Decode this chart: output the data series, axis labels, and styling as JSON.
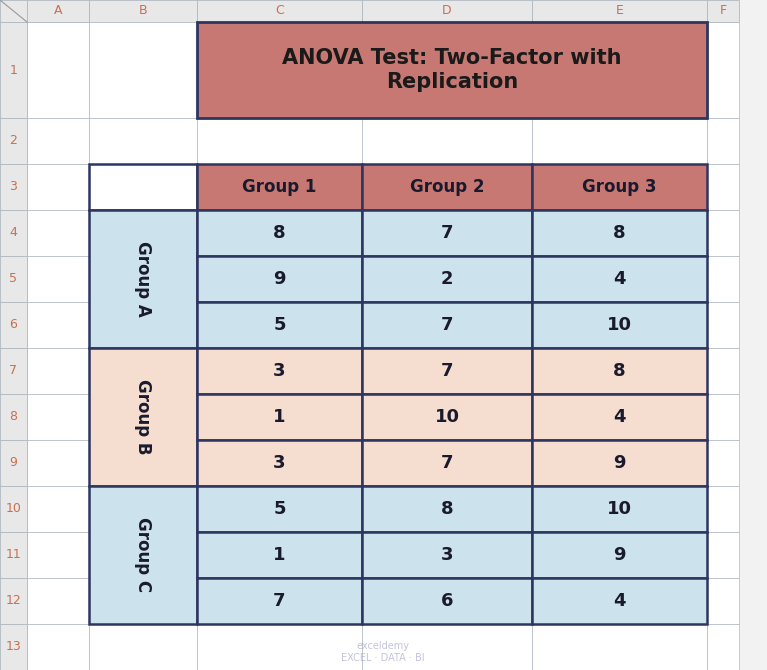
{
  "title": "ANOVA Test: Two-Factor with\nReplication",
  "title_bg": "#c87872",
  "title_fontsize": 15,
  "col_headers": [
    "Group 1",
    "Group 2",
    "Group 3"
  ],
  "data": [
    [
      8,
      7,
      8
    ],
    [
      9,
      2,
      4
    ],
    [
      5,
      7,
      10
    ],
    [
      3,
      7,
      8
    ],
    [
      1,
      10,
      4
    ],
    [
      3,
      7,
      9
    ],
    [
      5,
      8,
      10
    ],
    [
      1,
      3,
      9
    ],
    [
      7,
      6,
      4
    ]
  ],
  "color_A": "#cce3ed",
  "color_B": "#f5ddd0",
  "color_C": "#cce3ed",
  "header_bg": "#c87872",
  "cell_border": "#2d3561",
  "thin_border": "#b0b8c0",
  "excel_bg": "#f2f2f2",
  "excel_col_headers": [
    "A",
    "B",
    "C",
    "D",
    "E",
    "F"
  ],
  "excel_row_headers": [
    "1",
    "2",
    "3",
    "4",
    "5",
    "6",
    "7",
    "8",
    "9",
    "10",
    "11",
    "12",
    "13"
  ],
  "col_header_text_color": "#c87050",
  "row_header_text_color": "#c87050",
  "data_text_color": "#1a1a2e",
  "group_label_color": "#1a1a2e"
}
